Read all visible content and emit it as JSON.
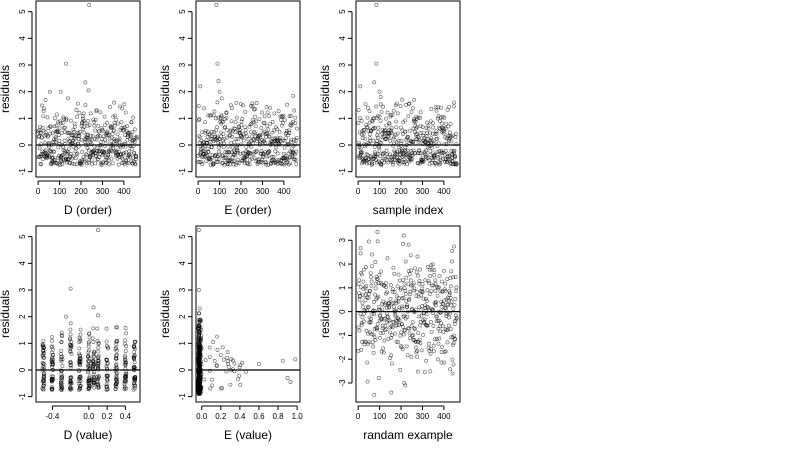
{
  "chart_data": [
    {
      "type": "scatter",
      "xlabel": "D (order)",
      "ylabel": "residuals",
      "xlim": [
        -10,
        475
      ],
      "ylim": [
        -1.2,
        5.4
      ],
      "xticks": [
        0,
        100,
        200,
        300,
        400
      ],
      "yticks": [
        -1,
        0,
        1,
        2,
        3,
        4,
        5
      ],
      "hline": 0,
      "highlights": [
        [
          238,
          5.25
        ],
        [
          130,
          3.05
        ],
        [
          220,
          2.35
        ],
        [
          235,
          2.05
        ],
        [
          55,
          2.0
        ],
        [
          105,
          2.0
        ],
        [
          140,
          1.75
        ]
      ],
      "gen": {
        "mode": "index",
        "n": 460,
        "seed": 11
      },
      "x": [],
      "y": []
    },
    {
      "type": "scatter",
      "xlabel": "E (order)",
      "ylabel": "residuals",
      "xlim": [
        -10,
        475
      ],
      "ylim": [
        -1.2,
        5.4
      ],
      "xticks": [
        0,
        100,
        200,
        300,
        400
      ],
      "yticks": [
        -1,
        0,
        1,
        2,
        3,
        4,
        5
      ],
      "hline": 0,
      "highlights": [
        [
          85,
          5.25
        ],
        [
          90,
          3.05
        ],
        [
          10,
          2.2
        ],
        [
          95,
          2.4
        ],
        [
          100,
          2.0
        ],
        [
          110,
          1.75
        ],
        [
          90,
          1.6
        ]
      ],
      "gen": {
        "mode": "index",
        "n": 460,
        "seed": 23
      },
      "x": [],
      "y": []
    },
    {
      "type": "scatter",
      "xlabel": "sample index",
      "ylabel": "residuals",
      "xlim": [
        -10,
        475
      ],
      "ylim": [
        -1.2,
        5.4
      ],
      "xticks": [
        0,
        100,
        200,
        300,
        400
      ],
      "yticks": [
        -1,
        0,
        1,
        2,
        3,
        4,
        5
      ],
      "hline": 0,
      "highlights": [
        [
          85,
          5.25
        ],
        [
          85,
          3.05
        ],
        [
          10,
          2.2
        ],
        [
          75,
          2.35
        ],
        [
          100,
          2.0
        ],
        [
          105,
          1.8
        ],
        [
          205,
          1.7
        ]
      ],
      "gen": {
        "mode": "index",
        "n": 460,
        "seed": 37
      },
      "x": [],
      "y": []
    },
    {
      "type": "scatter",
      "xlabel": "D (value)",
      "ylabel": "residuals",
      "xlim": [
        -0.58,
        0.56
      ],
      "ylim": [
        -1.2,
        5.4
      ],
      "xticks": [
        -0.4,
        0.0,
        0.2,
        0.4
      ],
      "yticks": [
        -1,
        0,
        1,
        2,
        3,
        4,
        5
      ],
      "hline": 0,
      "highlights": [
        [
          0.1,
          5.25
        ],
        [
          -0.2,
          3.05
        ],
        [
          0.05,
          2.35
        ],
        [
          0.1,
          2.05
        ],
        [
          -0.25,
          2.0
        ],
        [
          -0.2,
          1.75
        ]
      ],
      "gen": {
        "mode": "dvalue",
        "n": 460,
        "seed": 51
      },
      "x": [],
      "y": []
    },
    {
      "type": "scatter",
      "xlabel": "E (value)",
      "ylabel": "residuals",
      "xlim": [
        -0.06,
        1.03
      ],
      "ylim": [
        -1.2,
        5.4
      ],
      "xticks": [
        0.0,
        0.2,
        0.4,
        0.6,
        0.8,
        1.0
      ],
      "yticks": [
        -1,
        0,
        1,
        2,
        3,
        4,
        5
      ],
      "hline": 0,
      "highlights": [
        [
          -0.03,
          5.25
        ],
        [
          -0.03,
          3.0
        ],
        [
          0.12,
          1.05
        ],
        [
          0.16,
          1.25
        ],
        [
          0.22,
          0.85
        ],
        [
          0.6,
          0.22
        ],
        [
          0.9,
          -0.3
        ],
        [
          0.93,
          -0.45
        ],
        [
          0.98,
          0.4
        ],
        [
          0.85,
          0.35
        ],
        [
          0.38,
          -0.35
        ],
        [
          0.3,
          -0.55
        ]
      ],
      "gen": {
        "mode": "evalue",
        "n": 440,
        "seed": 67
      },
      "x": [],
      "y": []
    },
    {
      "type": "scatter",
      "xlabel": "randam example",
      "ylabel": "residuals",
      "xlim": [
        -10,
        475
      ],
      "ylim": [
        -3.8,
        3.6
      ],
      "xticks": [
        0,
        100,
        200,
        300,
        400
      ],
      "yticks": [
        -3,
        -2,
        -1,
        0,
        1,
        2,
        3
      ],
      "hline": 0,
      "highlights": [
        [
          90,
          3.35
        ],
        [
          50,
          2.95
        ],
        [
          210,
          2.85
        ],
        [
          75,
          -3.5
        ],
        [
          220,
          -3.1
        ],
        [
          215,
          -3.0
        ],
        [
          440,
          -2.6
        ]
      ],
      "gen": {
        "mode": "normal",
        "n": 460,
        "seed": 83
      },
      "x": [],
      "y": []
    }
  ]
}
